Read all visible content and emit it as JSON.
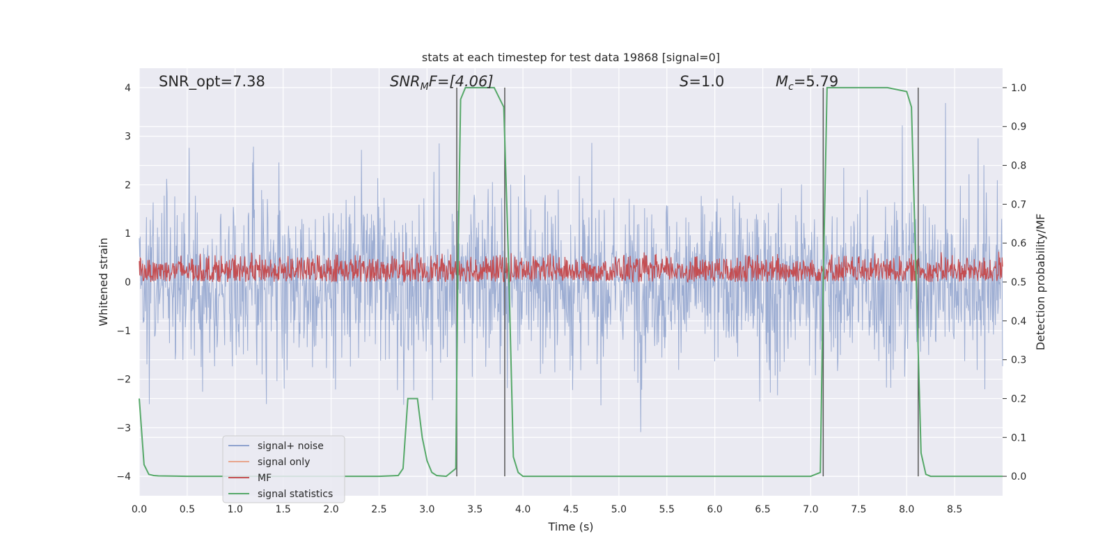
{
  "chart_data": {
    "type": "line",
    "title": "stats at each timestep for test data 19868 [signal=0]",
    "xlabel": "Time (s)",
    "ylabel_left": "Whitened strain",
    "ylabel_right": "Detection probability/MF",
    "xlim": [
      0,
      9.0
    ],
    "ylim_left": [
      -4.4,
      4.4
    ],
    "ylim_right": [
      -0.05,
      1.05
    ],
    "xticks": [
      "0.0",
      "0.5",
      "1.0",
      "1.5",
      "2.0",
      "2.5",
      "3.0",
      "3.5",
      "4.0",
      "4.5",
      "5.0",
      "5.5",
      "6.0",
      "6.5",
      "7.0",
      "7.5",
      "8.0",
      "8.5"
    ],
    "yticks_left": [
      "4",
      "3",
      "2",
      "1",
      "0",
      "−1",
      "−2",
      "−3",
      "−4"
    ],
    "yticks_right": [
      "1.0",
      "0.9",
      "0.8",
      "0.7",
      "0.6",
      "0.5",
      "0.4",
      "0.3",
      "0.2",
      "0.1",
      "0.0"
    ],
    "annotations": {
      "snr_opt": "SNR_opt=7.38",
      "snr_mf_main": "SNR",
      "snr_mf_sub": "M",
      "snr_mf_rest": "F=[4.06]",
      "s_italic": "S",
      "s_rest": "=1.0",
      "mc_italic": "M",
      "mc_sub": "c",
      "mc_rest": "=5.79"
    },
    "grid": true,
    "legend_position": "lower-left",
    "legend": [
      "signal+ noise",
      "signal only",
      "MF",
      "signal statistics"
    ],
    "series": [
      {
        "name": "signal+ noise",
        "color": "#8da1cd",
        "description_axis": "left",
        "amplitude_envelope_max": 4.0,
        "amplitude_envelope_min": -3.6
      },
      {
        "name": "signal only",
        "color": "#e8a58c",
        "description_axis": "left"
      },
      {
        "name": "MF",
        "color": "#c44e52",
        "description_axis": "right",
        "range": [
          0.5,
          0.58
        ]
      },
      {
        "name": "signal statistics",
        "color": "#55a868",
        "description_axis": "right",
        "x": [
          0.0,
          0.05,
          0.1,
          0.15,
          0.2,
          0.5,
          1.0,
          1.5,
          2.0,
          2.5,
          2.7,
          2.75,
          2.8,
          2.85,
          2.9,
          2.95,
          3.0,
          3.05,
          3.1,
          3.2,
          3.3,
          3.32,
          3.35,
          3.4,
          3.5,
          3.6,
          3.7,
          3.8,
          3.85,
          3.9,
          3.95,
          4.0,
          4.5,
          5.0,
          5.5,
          6.0,
          6.5,
          7.0,
          7.1,
          7.13,
          7.17,
          7.2,
          7.5,
          7.8,
          8.0,
          8.05,
          8.1,
          8.15,
          8.2,
          8.25,
          8.5,
          9.0
        ],
        "y": [
          0.2,
          0.03,
          0.005,
          0.002,
          0.001,
          0.0,
          0.0,
          0.0,
          0.0,
          0.0,
          0.002,
          0.02,
          0.2,
          0.2,
          0.2,
          0.1,
          0.04,
          0.01,
          0.002,
          0.0,
          0.02,
          0.5,
          0.97,
          1.0,
          1.0,
          1.0,
          1.0,
          0.95,
          0.55,
          0.05,
          0.01,
          0.0,
          0.0,
          0.0,
          0.0,
          0.0,
          0.0,
          0.0,
          0.01,
          0.5,
          1.0,
          1.0,
          1.0,
          1.0,
          0.99,
          0.95,
          0.5,
          0.06,
          0.005,
          0.0,
          0.0,
          0.0
        ]
      }
    ],
    "vlines": [
      3.31,
      3.81,
      7.13,
      8.12
    ]
  }
}
